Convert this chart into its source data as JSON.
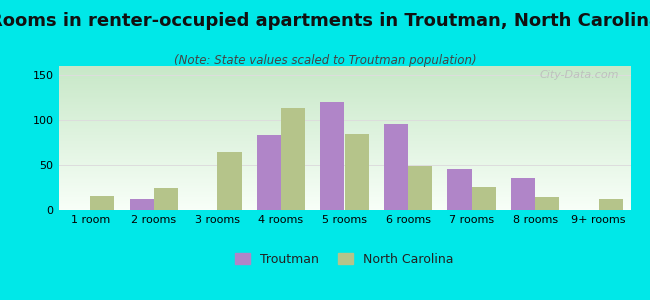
{
  "title": "Rooms in renter-occupied apartments in Troutman, North Carolina",
  "subtitle": "(Note: State values scaled to Troutman population)",
  "categories": [
    "1 room",
    "2 rooms",
    "3 rooms",
    "4 rooms",
    "5 rooms",
    "6 rooms",
    "7 rooms",
    "8 rooms",
    "9+ rooms"
  ],
  "troutman_values": [
    0,
    12,
    0,
    83,
    120,
    96,
    46,
    36,
    0
  ],
  "nc_values": [
    16,
    24,
    65,
    113,
    85,
    49,
    26,
    14,
    12
  ],
  "troutman_color": "#b085c8",
  "nc_color": "#b5c48a",
  "bar_width": 0.38,
  "ylim": [
    0,
    160
  ],
  "yticks": [
    0,
    50,
    100,
    150
  ],
  "background_color": "#00e8e8",
  "grid_color": "#dddddd",
  "title_fontsize": 13,
  "subtitle_fontsize": 8.5,
  "axis_fontsize": 8,
  "legend_fontsize": 9,
  "watermark": "City-Data.com"
}
